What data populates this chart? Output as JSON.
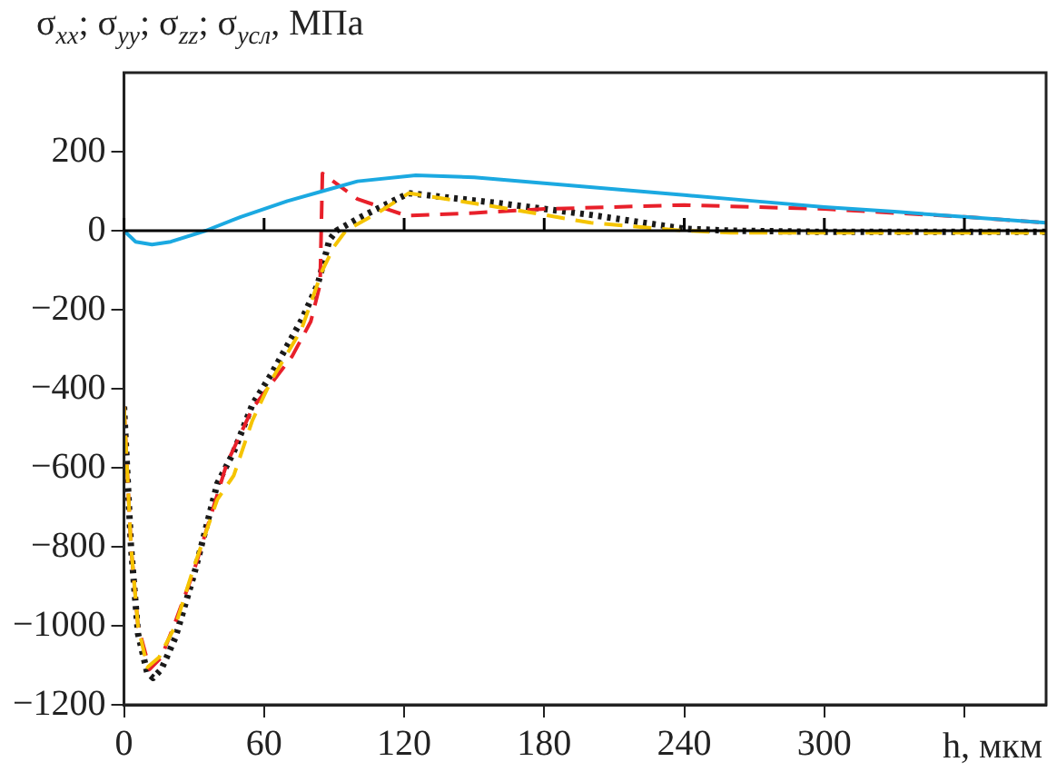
{
  "chart_data": {
    "type": "line",
    "ylabel": "σ$_{xx}$; σ$_{yy}$; σ$_{zz}$; σ$_{усл}$, МПа",
    "xlabel": "h, мкм",
    "xlim": [
      0,
      395
    ],
    "xticks": [
      0,
      60,
      120,
      180,
      240,
      300,
      {
        "value": 360,
        "label": null
      }
    ],
    "ylim": [
      -1200,
      400
    ],
    "yticks": [
      -1200,
      -1000,
      -800,
      -600,
      -400,
      -200,
      0,
      200
    ],
    "grid": false,
    "legend": false,
    "marker": "none",
    "ref_lines": [
      {
        "axis": "y",
        "value": 0,
        "color": "#000000"
      }
    ],
    "series": [
      {
        "color": "#1ba9e1",
        "line_style": "solid",
        "x": [
          0,
          5,
          12,
          20,
          35,
          50,
          70,
          85,
          100,
          125,
          150,
          180,
          210,
          240,
          270,
          300,
          330,
          360,
          395
        ],
        "values": [
          0,
          -28,
          -35,
          -28,
          0,
          35,
          75,
          100,
          125,
          140,
          135,
          120,
          105,
          90,
          75,
          60,
          48,
          35,
          20
        ]
      },
      {
        "color": "#f5c400",
        "line_style": "dashed",
        "x": [
          0,
          3,
          6,
          10,
          15,
          22,
          30,
          40,
          47,
          55,
          63,
          76,
          85,
          90,
          95,
          110,
          122,
          160,
          200,
          240,
          260,
          300,
          360,
          395
        ],
        "values": [
          -445,
          -800,
          -1000,
          -1105,
          -1080,
          -1000,
          -850,
          -680,
          -620,
          -480,
          -380,
          -250,
          -100,
          -40,
          0,
          50,
          95,
          60,
          20,
          0,
          -5,
          -5,
          -5,
          -5
        ]
      },
      {
        "color": "#e8202a",
        "line_style": "dashed",
        "x": [
          0,
          3,
          6,
          11,
          16,
          22,
          30,
          44,
          55,
          72,
          80,
          84,
          85,
          100,
          121,
          150,
          180,
          240,
          300,
          360,
          395
        ],
        "values": [
          -445,
          -800,
          -1000,
          -1110,
          -1080,
          -990,
          -860,
          -590,
          -450,
          -318,
          -230,
          -136,
          145,
          80,
          38,
          45,
          55,
          65,
          55,
          35,
          20
        ]
      },
      {
        "color": "#1a1a1a",
        "line_style": "dotted",
        "x": [
          0,
          3,
          6,
          10,
          12.5,
          16,
          22,
          30,
          40,
          47,
          55,
          63,
          76,
          83,
          88,
          91,
          100,
          110,
          122,
          160,
          200,
          240,
          260,
          300,
          360,
          395
        ],
        "values": [
          -445,
          -800,
          -1020,
          -1120,
          -1132,
          -1110,
          -1030,
          -870,
          -640,
          -560,
          -440,
          -364,
          -227,
          -136,
          -23,
          0,
          30,
          60,
          95,
          70,
          40,
          5,
          0,
          -3,
          -3,
          -3
        ]
      }
    ]
  }
}
